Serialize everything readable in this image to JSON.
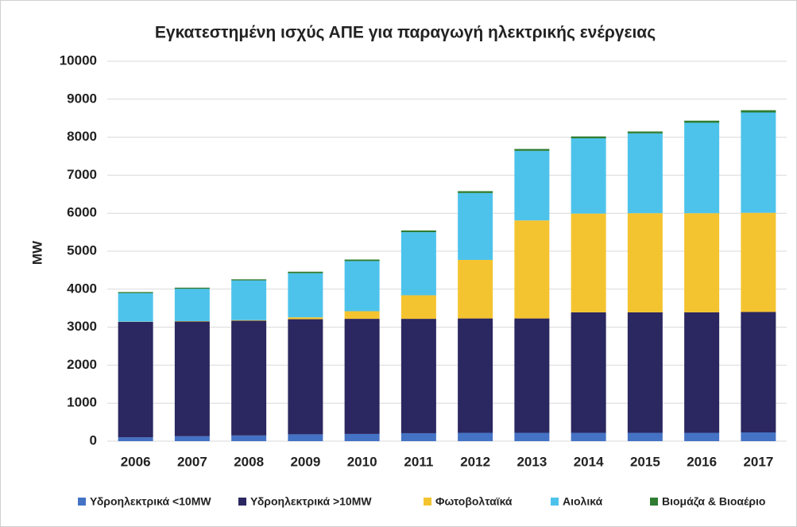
{
  "chart_data": {
    "type": "stacked_bar",
    "title": "Εγκατεστημένη ισχύς ΑΠΕ για παραγωγή ηλεκτρικής ενέργειας",
    "y_label": "MW",
    "categories": [
      "2006",
      "2007",
      "2008",
      "2009",
      "2010",
      "2011",
      "2012",
      "2013",
      "2014",
      "2015",
      "2016",
      "2017"
    ],
    "series": [
      {
        "name": "Υδροηλεκτρικά <10MW",
        "color": "#4472c4",
        "values": [
          100,
          130,
          150,
          180,
          190,
          210,
          220,
          220,
          220,
          220,
          220,
          230
        ]
      },
      {
        "name": "Υδροηλεκτρικά >10MW",
        "color": "#2b2760",
        "values": [
          3040,
          3020,
          3020,
          3030,
          3030,
          3010,
          3010,
          3010,
          3170,
          3170,
          3170,
          3170
        ]
      },
      {
        "name": "Φωτοβολταϊκά",
        "color": "#f4c430",
        "values": [
          5,
          10,
          15,
          50,
          200,
          620,
          1540,
          2580,
          2600,
          2610,
          2610,
          2610
        ]
      },
      {
        "name": "Αιολικά",
        "color": "#4dc3ec",
        "values": [
          750,
          850,
          1045,
          1160,
          1320,
          1660,
          1760,
          1830,
          1980,
          2100,
          2380,
          2640
        ]
      },
      {
        "name": "Βιομάζα & Βιοαέριο",
        "color": "#2e7d32",
        "values": [
          30,
          30,
          30,
          40,
          40,
          45,
          50,
          50,
          50,
          50,
          55,
          60
        ]
      }
    ],
    "ylim": [
      0,
      10000
    ],
    "yticks": [
      0,
      1000,
      2000,
      3000,
      4000,
      5000,
      6000,
      7000,
      8000,
      9000,
      10000
    ],
    "grid": true
  }
}
